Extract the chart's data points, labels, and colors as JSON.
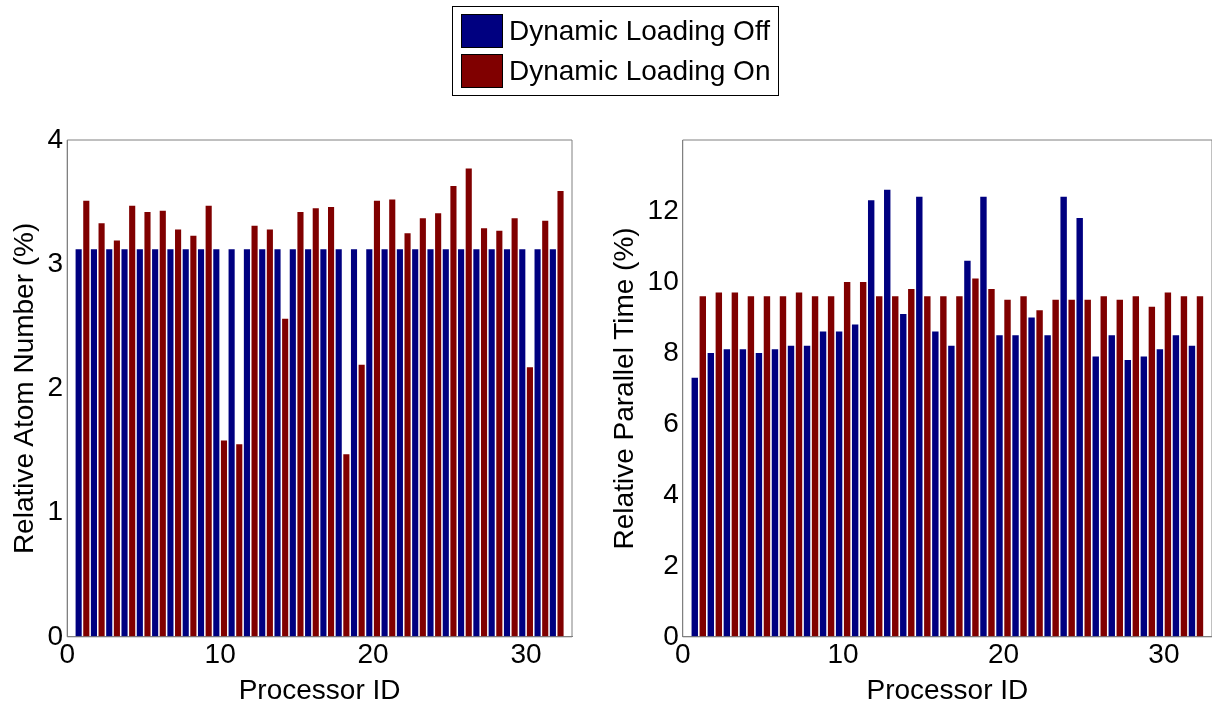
{
  "chart_data": [
    {
      "type": "bar",
      "xlabel": "Processor ID",
      "ylabel": "Relative Atom Number (%)",
      "legend": "top",
      "grid": false,
      "x": [
        1,
        2,
        3,
        4,
        5,
        6,
        7,
        8,
        9,
        10,
        11,
        12,
        13,
        14,
        15,
        16,
        17,
        18,
        19,
        20,
        21,
        22,
        23,
        24,
        25,
        26,
        27,
        28,
        29,
        30,
        31,
        32
      ],
      "xlim": [
        0,
        33
      ],
      "xticks": [
        0,
        10,
        20,
        30
      ],
      "ylim": [
        0,
        4
      ],
      "yticks": [
        0,
        1,
        2,
        3,
        4
      ],
      "series": [
        {
          "name": "Dynamic Loading Off",
          "color": "#000080",
          "values": [
            3.12,
            3.12,
            3.12,
            3.12,
            3.12,
            3.12,
            3.12,
            3.12,
            3.12,
            3.12,
            3.12,
            3.12,
            3.12,
            3.12,
            3.12,
            3.12,
            3.12,
            3.12,
            3.12,
            3.12,
            3.12,
            3.12,
            3.12,
            3.12,
            3.12,
            3.12,
            3.12,
            3.12,
            3.12,
            3.12,
            3.12,
            3.12
          ]
        },
        {
          "name": "Dynamic Loading On",
          "color": "#800000",
          "values": [
            3.51,
            3.33,
            3.19,
            3.47,
            3.42,
            3.43,
            3.28,
            3.23,
            3.47,
            1.58,
            1.55,
            3.31,
            3.28,
            2.56,
            3.42,
            3.45,
            3.46,
            1.47,
            2.19,
            3.51,
            3.52,
            3.25,
            3.37,
            3.41,
            3.63,
            3.77,
            3.29,
            3.27,
            3.37,
            2.17,
            3.35,
            3.59
          ]
        }
      ]
    },
    {
      "type": "bar",
      "xlabel": "Processor ID",
      "ylabel": "Relative Parallel Time (%)",
      "grid": false,
      "x": [
        1,
        2,
        3,
        4,
        5,
        6,
        7,
        8,
        9,
        10,
        11,
        12,
        13,
        14,
        15,
        16,
        17,
        18,
        19,
        20,
        21,
        22,
        23,
        24,
        25,
        26,
        27,
        28,
        29,
        30,
        31,
        32
      ],
      "xlim": [
        0,
        33
      ],
      "xticks": [
        0,
        10,
        20,
        30
      ],
      "ylim": [
        0,
        14
      ],
      "yticks": [
        0,
        2,
        4,
        6,
        8,
        10,
        12
      ],
      "series": [
        {
          "color": "#000080",
          "values": [
            7.3,
            8.0,
            8.1,
            8.1,
            8.0,
            8.1,
            8.2,
            8.2,
            8.6,
            8.6,
            8.8,
            12.3,
            12.6,
            9.1,
            12.4,
            8.6,
            8.2,
            10.6,
            12.4,
            8.5,
            8.5,
            9.0,
            8.5,
            12.4,
            11.8,
            7.9,
            8.5,
            7.8,
            7.9,
            8.1,
            8.5,
            8.2
          ]
        },
        {
          "color": "#800000",
          "values": [
            9.6,
            9.7,
            9.7,
            9.6,
            9.6,
            9.6,
            9.7,
            9.6,
            9.6,
            10.0,
            10.0,
            9.6,
            9.6,
            9.8,
            9.6,
            9.6,
            9.6,
            10.1,
            9.8,
            9.5,
            9.6,
            9.2,
            9.5,
            9.5,
            9.5,
            9.6,
            9.5,
            9.6,
            9.3,
            9.7,
            9.6,
            9.6
          ]
        }
      ]
    }
  ]
}
